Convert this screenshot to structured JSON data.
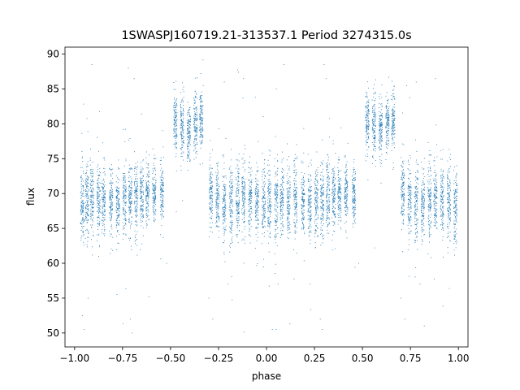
{
  "chart_data": {
    "type": "scatter",
    "title": "1SWASPJ160719.21-313537.1 Period 3274315.0s",
    "xlabel": "phase",
    "ylabel": "flux",
    "xlim": [
      -1.05,
      1.05
    ],
    "ylim": [
      48,
      91
    ],
    "xticks": [
      -1.0,
      -0.75,
      -0.5,
      -0.25,
      0.0,
      0.25,
      0.5,
      0.75,
      1.0
    ],
    "xtick_labels": [
      "−1.00",
      "−0.75",
      "−0.50",
      "−0.25",
      "0.00",
      "0.25",
      "0.50",
      "0.75",
      "1.00"
    ],
    "yticks": [
      50,
      55,
      60,
      65,
      70,
      75,
      80,
      85,
      90
    ],
    "ytick_labels": [
      "50",
      "55",
      "60",
      "65",
      "70",
      "75",
      "80",
      "85",
      "90"
    ],
    "grid": false,
    "marker_color": "#1f77b4",
    "nights": [
      {
        "x": -0.96,
        "y": 68.5,
        "spread": 2.6
      },
      {
        "x": -0.935,
        "y": 69.0,
        "spread": 2.6
      },
      {
        "x": -0.91,
        "y": 69.2,
        "spread": 2.4
      },
      {
        "x": -0.875,
        "y": 68.8,
        "spread": 2.6
      },
      {
        "x": -0.85,
        "y": 69.0,
        "spread": 2.4
      },
      {
        "x": -0.81,
        "y": 68.5,
        "spread": 2.4
      },
      {
        "x": -0.775,
        "y": 68.5,
        "spread": 2.3
      },
      {
        "x": -0.74,
        "y": 69.0,
        "spread": 2.4
      },
      {
        "x": -0.71,
        "y": 69.2,
        "spread": 2.6
      },
      {
        "x": -0.68,
        "y": 69.5,
        "spread": 2.6
      },
      {
        "x": -0.65,
        "y": 69.5,
        "spread": 2.4
      },
      {
        "x": -0.62,
        "y": 70.0,
        "spread": 2.2
      },
      {
        "x": -0.585,
        "y": 70.0,
        "spread": 2.0
      },
      {
        "x": -0.545,
        "y": 70.0,
        "spread": 2.0
      },
      {
        "x": -0.475,
        "y": 80.0,
        "spread": 2.0
      },
      {
        "x": -0.44,
        "y": 79.5,
        "spread": 2.2
      },
      {
        "x": -0.405,
        "y": 79.0,
        "spread": 2.0
      },
      {
        "x": -0.37,
        "y": 80.0,
        "spread": 2.0
      },
      {
        "x": -0.34,
        "y": 80.5,
        "spread": 2.0
      },
      {
        "x": -0.29,
        "y": 70.0,
        "spread": 2.4
      },
      {
        "x": -0.255,
        "y": 69.0,
        "spread": 2.4
      },
      {
        "x": -0.22,
        "y": 68.5,
        "spread": 2.6
      },
      {
        "x": -0.185,
        "y": 68.5,
        "spread": 2.6
      },
      {
        "x": -0.15,
        "y": 69.0,
        "spread": 2.6
      },
      {
        "x": -0.12,
        "y": 69.0,
        "spread": 2.4
      },
      {
        "x": -0.085,
        "y": 69.0,
        "spread": 2.4
      },
      {
        "x": -0.05,
        "y": 68.8,
        "spread": 2.6
      },
      {
        "x": -0.015,
        "y": 68.5,
        "spread": 2.6
      },
      {
        "x": 0.015,
        "y": 68.5,
        "spread": 2.6
      },
      {
        "x": 0.05,
        "y": 69.0,
        "spread": 2.6
      },
      {
        "x": 0.08,
        "y": 69.0,
        "spread": 2.4
      },
      {
        "x": 0.115,
        "y": 68.8,
        "spread": 2.6
      },
      {
        "x": 0.15,
        "y": 69.0,
        "spread": 2.4
      },
      {
        "x": 0.19,
        "y": 68.5,
        "spread": 2.4
      },
      {
        "x": 0.225,
        "y": 68.5,
        "spread": 2.4
      },
      {
        "x": 0.26,
        "y": 69.0,
        "spread": 2.4
      },
      {
        "x": 0.29,
        "y": 69.2,
        "spread": 2.6
      },
      {
        "x": 0.32,
        "y": 69.5,
        "spread": 2.6
      },
      {
        "x": 0.35,
        "y": 69.5,
        "spread": 2.4
      },
      {
        "x": 0.38,
        "y": 70.0,
        "spread": 2.2
      },
      {
        "x": 0.415,
        "y": 70.0,
        "spread": 2.0
      },
      {
        "x": 0.455,
        "y": 70.0,
        "spread": 2.0
      },
      {
        "x": 0.525,
        "y": 80.0,
        "spread": 2.0
      },
      {
        "x": 0.56,
        "y": 79.5,
        "spread": 2.2
      },
      {
        "x": 0.595,
        "y": 79.0,
        "spread": 2.0
      },
      {
        "x": 0.63,
        "y": 80.0,
        "spread": 2.0
      },
      {
        "x": 0.66,
        "y": 80.5,
        "spread": 2.0
      },
      {
        "x": 0.71,
        "y": 70.0,
        "spread": 2.4
      },
      {
        "x": 0.745,
        "y": 69.0,
        "spread": 2.4
      },
      {
        "x": 0.78,
        "y": 68.5,
        "spread": 2.6
      },
      {
        "x": 0.815,
        "y": 68.5,
        "spread": 2.6
      },
      {
        "x": 0.85,
        "y": 69.0,
        "spread": 2.6
      },
      {
        "x": 0.88,
        "y": 69.0,
        "spread": 2.4
      },
      {
        "x": 0.915,
        "y": 69.0,
        "spread": 2.4
      },
      {
        "x": 0.95,
        "y": 68.8,
        "spread": 2.6
      },
      {
        "x": 0.985,
        "y": 68.5,
        "spread": 2.6
      }
    ],
    "outliers": [
      {
        "x": -0.96,
        "y": 52.5
      },
      {
        "x": -0.95,
        "y": 50.5
      },
      {
        "x": -0.93,
        "y": 55.0
      },
      {
        "x": -0.91,
        "y": 88.5
      },
      {
        "x": -0.72,
        "y": 88.0
      },
      {
        "x": -0.71,
        "y": 52.0
      },
      {
        "x": -0.7,
        "y": 50.0
      },
      {
        "x": -0.69,
        "y": 86.5
      },
      {
        "x": -0.52,
        "y": 60.0
      },
      {
        "x": -0.3,
        "y": 55.0
      },
      {
        "x": -0.28,
        "y": 52.0
      },
      {
        "x": -0.33,
        "y": 85.5
      },
      {
        "x": -0.22,
        "y": 86.0
      },
      {
        "x": -0.2,
        "y": 57.0
      },
      {
        "x": 0.03,
        "y": 50.5
      },
      {
        "x": 0.05,
        "y": 50.5
      },
      {
        "x": 0.06,
        "y": 57.0
      },
      {
        "x": 0.09,
        "y": 88.5
      },
      {
        "x": 0.28,
        "y": 52.0
      },
      {
        "x": 0.29,
        "y": 50.5
      },
      {
        "x": 0.3,
        "y": 88.5
      },
      {
        "x": 0.31,
        "y": 86.5
      },
      {
        "x": 0.48,
        "y": 60.0
      },
      {
        "x": 0.7,
        "y": 55.0
      },
      {
        "x": 0.72,
        "y": 52.0
      },
      {
        "x": 0.73,
        "y": 85.5
      },
      {
        "x": 0.78,
        "y": 86.0
      },
      {
        "x": 0.8,
        "y": 57.0
      },
      {
        "x": -0.12,
        "y": 86.5
      },
      {
        "x": 0.88,
        "y": 86.5
      }
    ]
  }
}
